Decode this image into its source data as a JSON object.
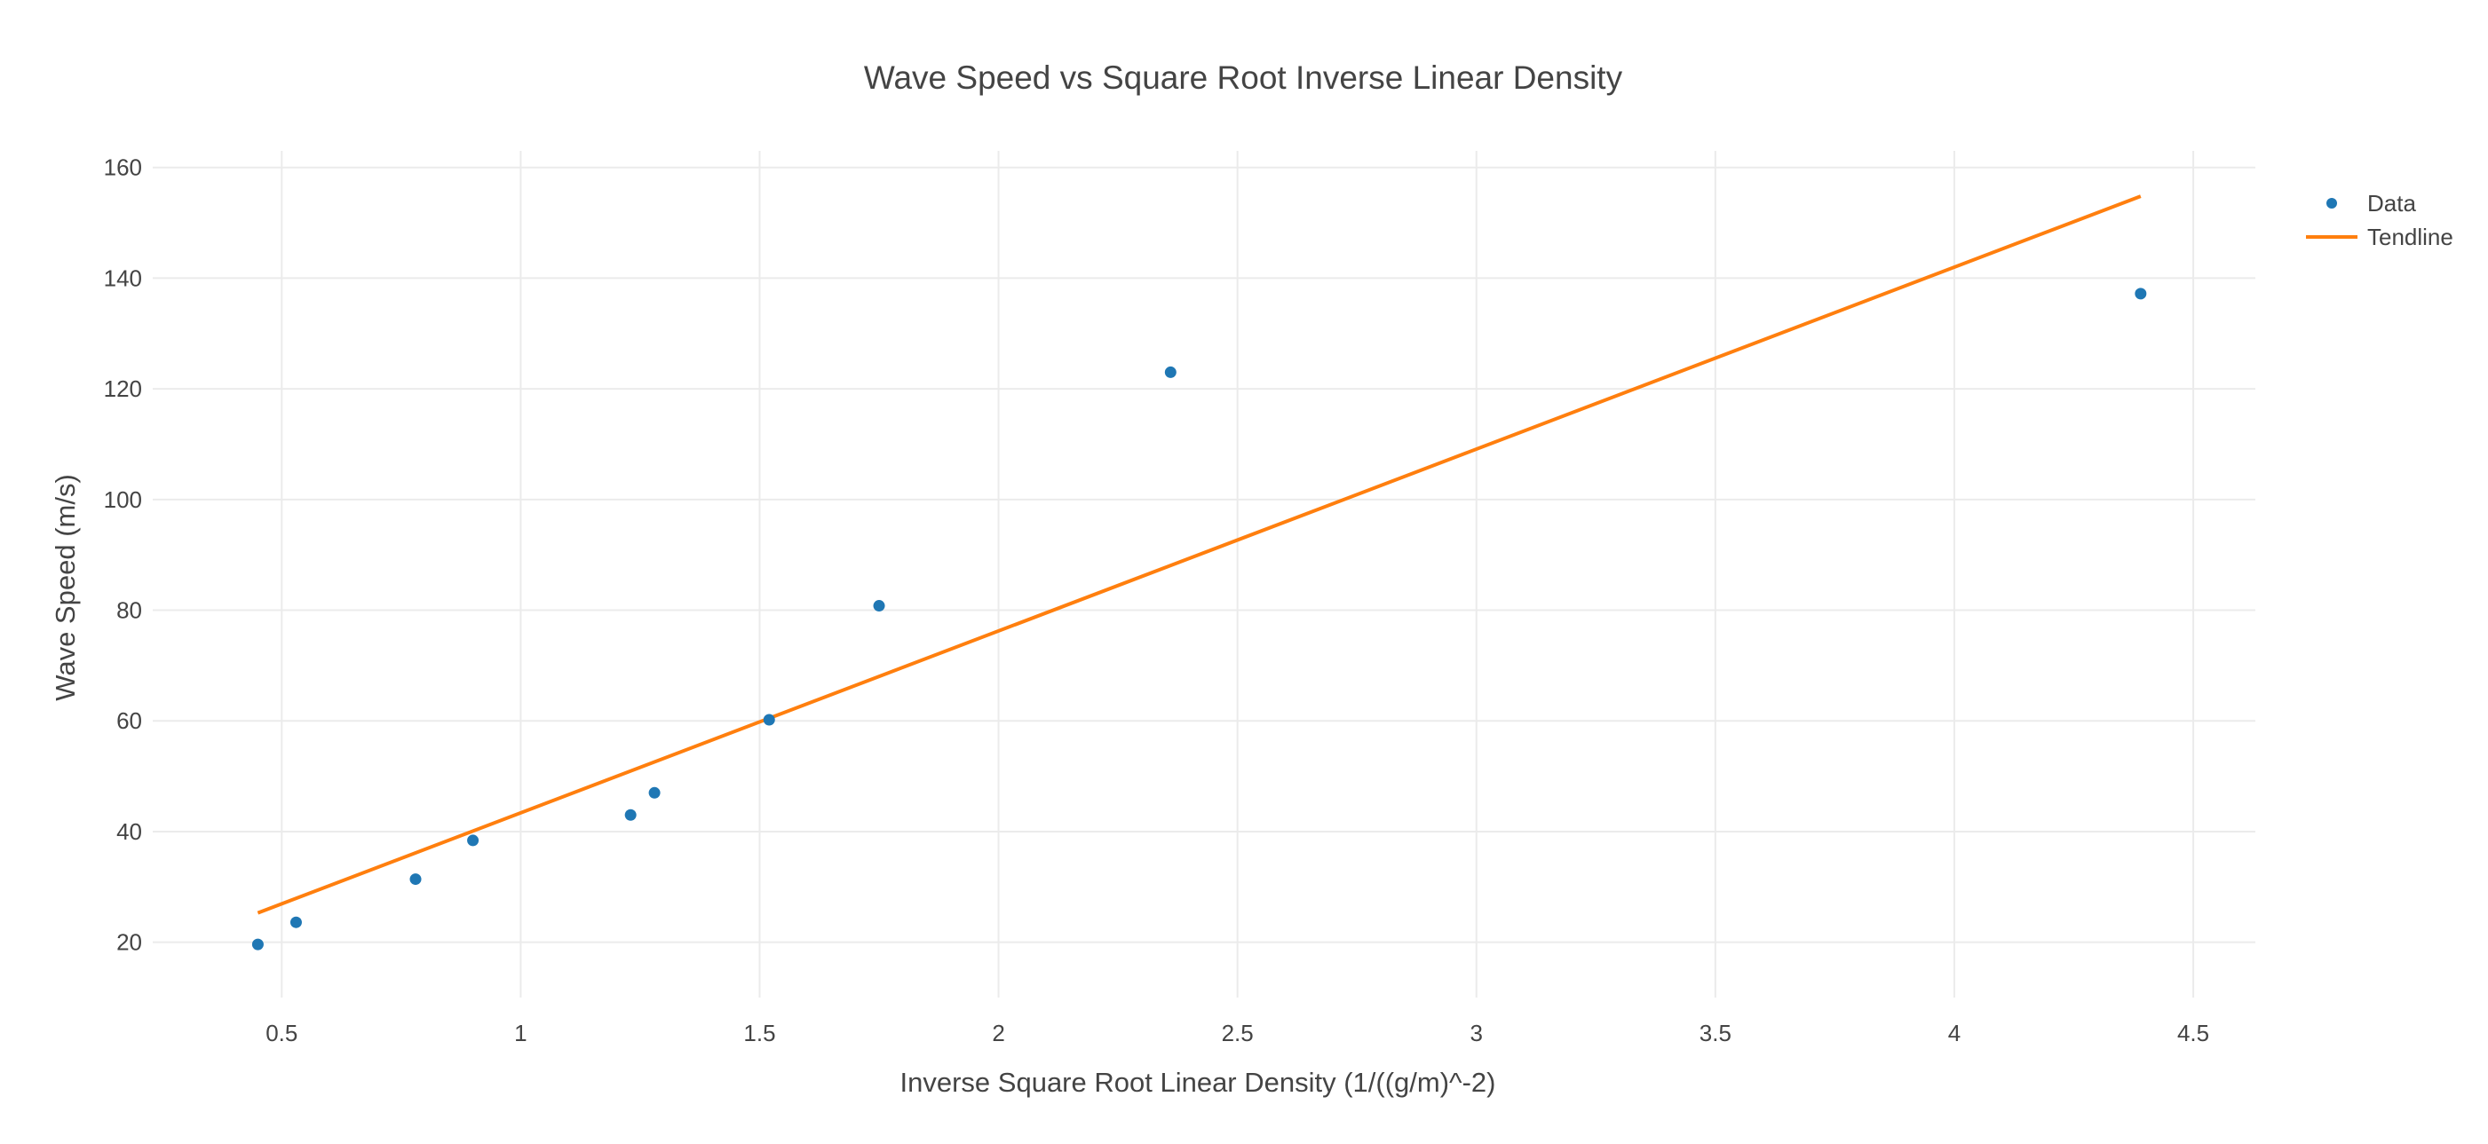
{
  "chart_data": {
    "type": "scatter",
    "title": "Wave Speed vs Square Root Inverse Linear Density",
    "xlabel": "Inverse Square Root Linear Density (1/((g/m)^-2)",
    "ylabel": "Wave Speed (m/s)",
    "xlim": [
      0.23,
      4.63
    ],
    "ylim": [
      10,
      163
    ],
    "x_ticks": [
      0.5,
      1,
      1.5,
      2,
      2.5,
      3,
      3.5,
      4,
      4.5
    ],
    "x_tick_labels": [
      "0.5",
      "1",
      "1.5",
      "2",
      "2.5",
      "3",
      "3.5",
      "4",
      "4.5"
    ],
    "y_ticks": [
      20,
      40,
      60,
      80,
      100,
      120,
      140,
      160
    ],
    "y_tick_labels": [
      "20",
      "40",
      "60",
      "80",
      "100",
      "120",
      "140",
      "160"
    ],
    "grid": true,
    "legend_position": "top-right",
    "series": [
      {
        "name": "Data",
        "mode": "markers",
        "color": "#1f77b4",
        "x": [
          0.45,
          0.53,
          0.78,
          0.9,
          1.23,
          1.28,
          1.52,
          1.75,
          2.36,
          4.39
        ],
        "y": [
          19.6,
          23.6,
          31.4,
          38.4,
          43.0,
          47.0,
          60.2,
          80.8,
          123.0,
          137.2
        ]
      },
      {
        "name": "Tendline",
        "mode": "lines",
        "color": "#ff7f0e",
        "x": [
          0.45,
          4.39
        ],
        "y": [
          25.3,
          154.8
        ]
      }
    ]
  }
}
